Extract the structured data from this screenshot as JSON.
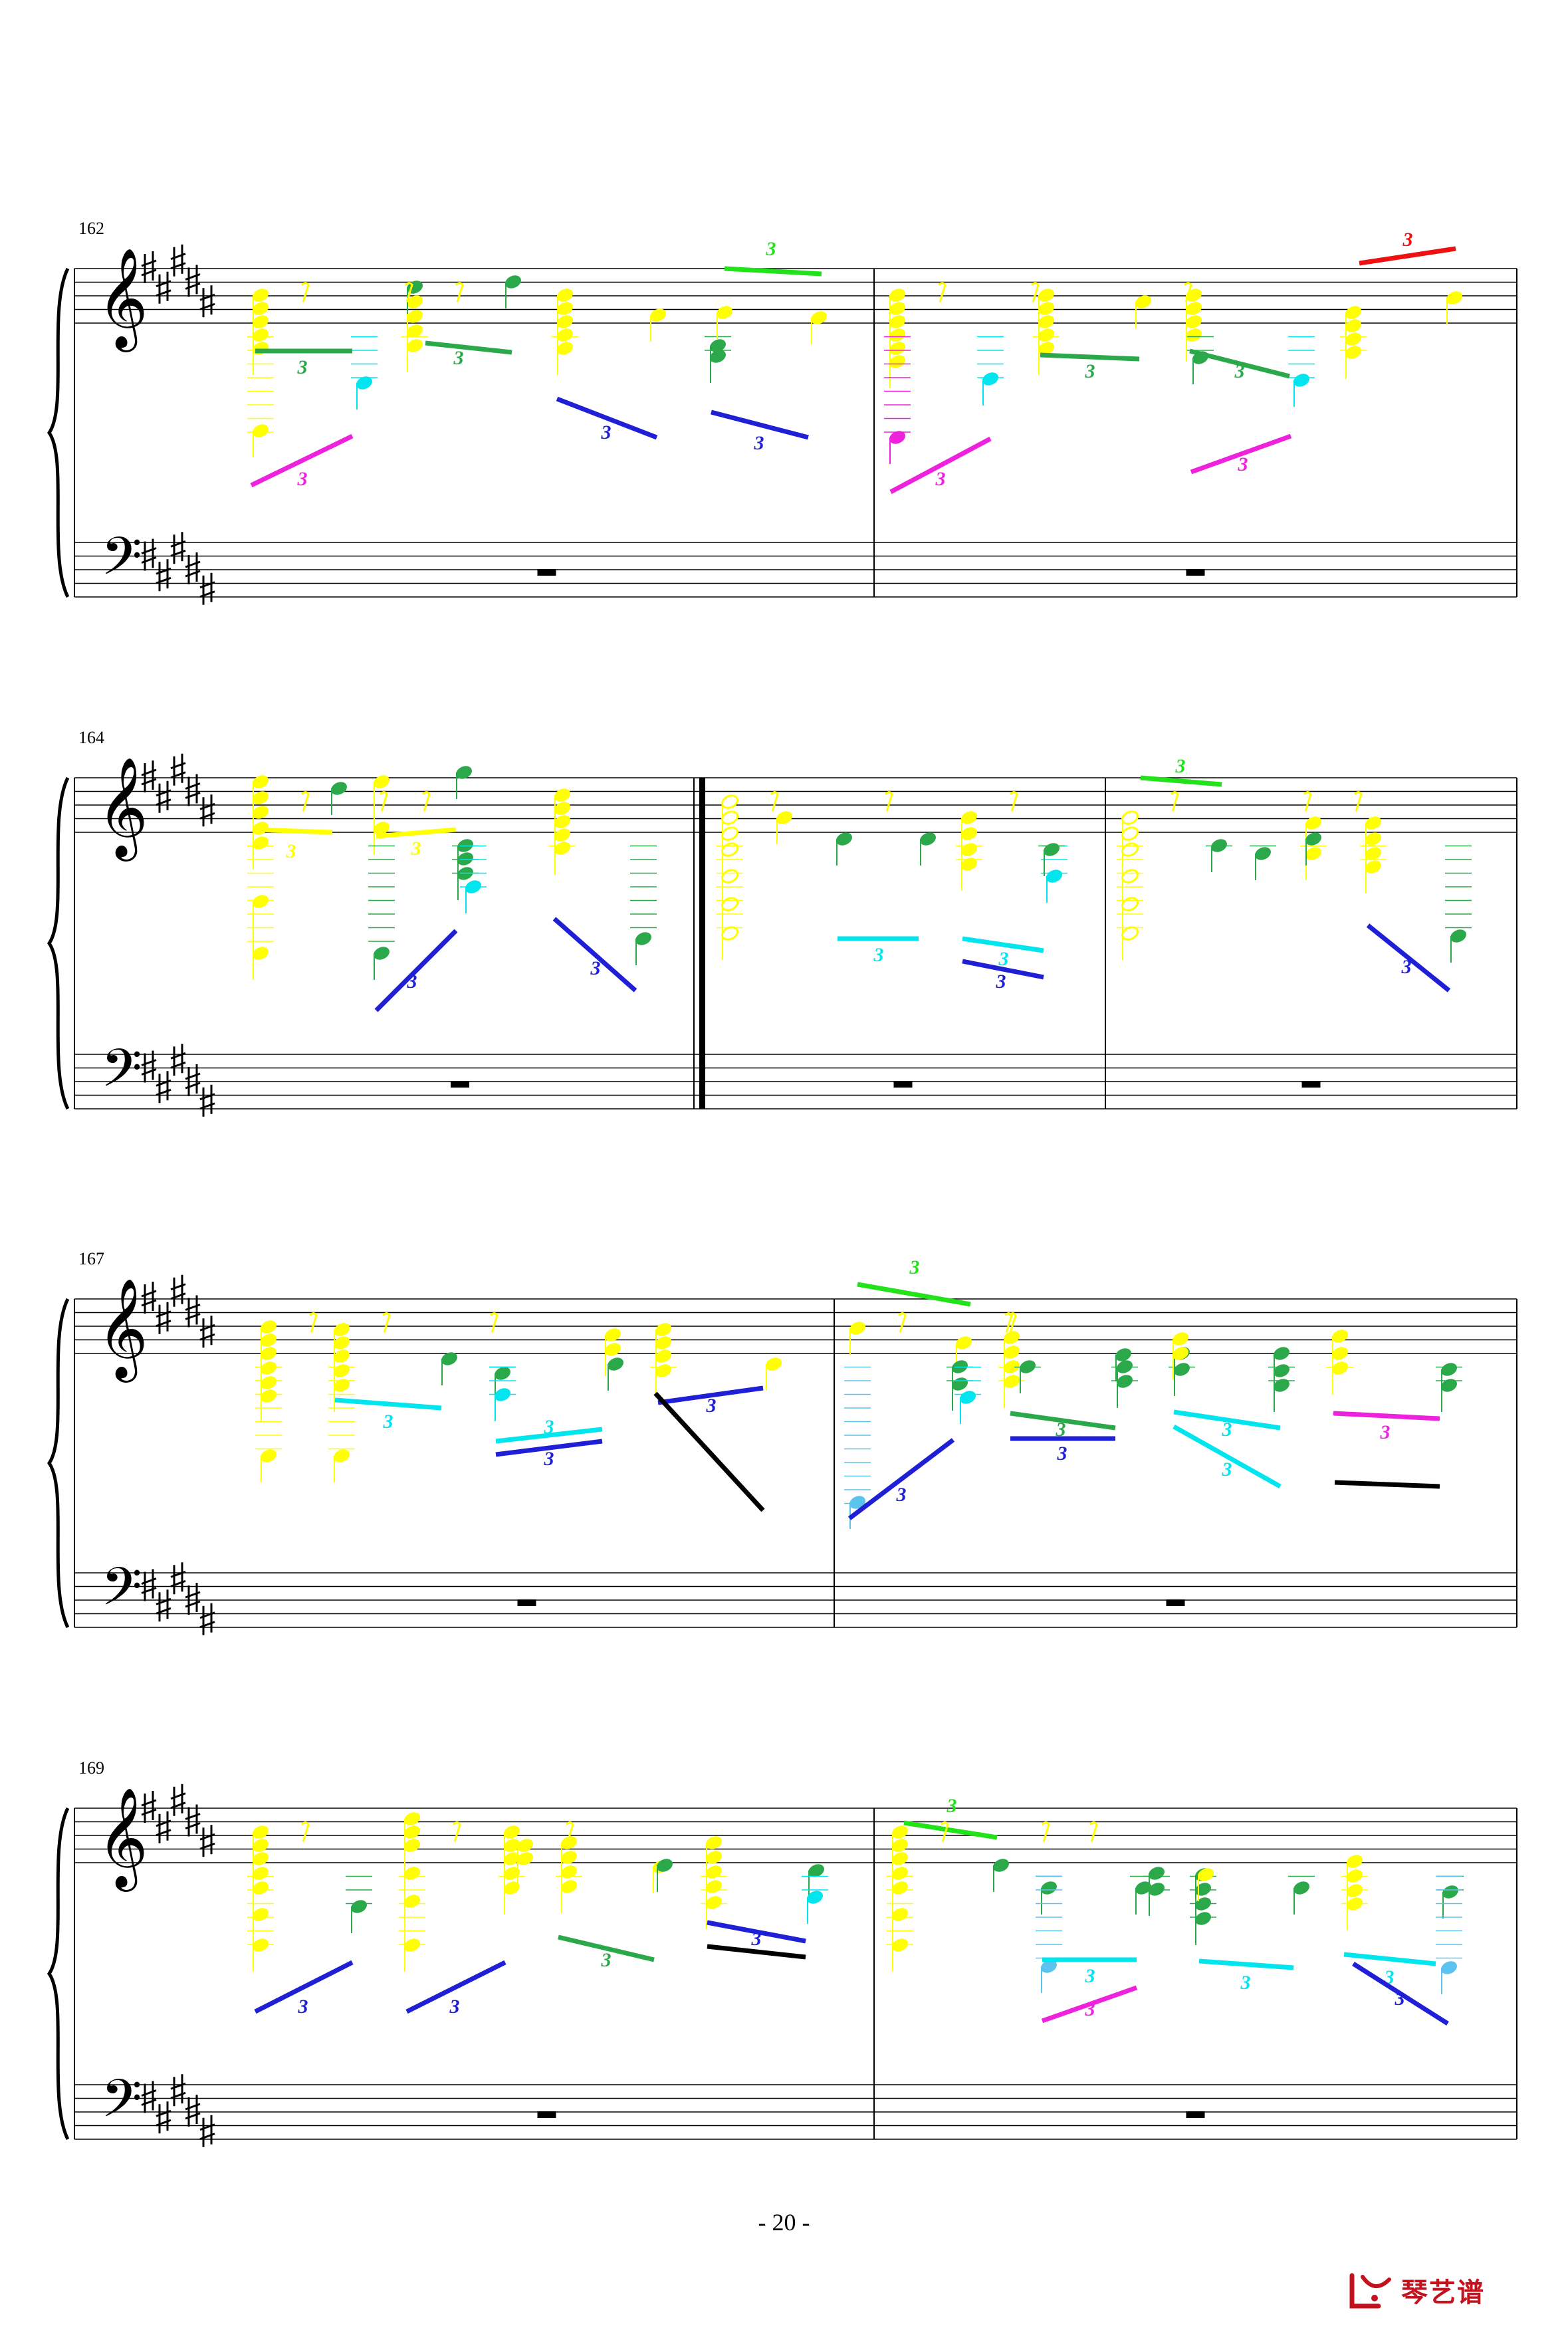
{
  "page": {
    "number_text": "- 20 -"
  },
  "brand": {
    "name": "琴艺谱",
    "color": "#c2121e"
  },
  "colors": {
    "yellow": "#ffff00",
    "green": "#2ba84a",
    "lime": "#22e21a",
    "cyan": "#00e5ee",
    "skyblue": "#5cc2ee",
    "blue": "#1f1fd6",
    "magenta": "#ee22dd",
    "red": "#ee1111",
    "black": "#000000"
  },
  "key_signature": {
    "sharps": 5
  },
  "systems": [
    {
      "first_measure": "162",
      "measures": [
        {
          "tuplets": [
            {
              "text": "3",
              "color": "magenta"
            },
            {
              "text": "3",
              "color": "green"
            },
            {
              "text": "3",
              "color": "green"
            },
            {
              "text": "3",
              "color": "blue"
            },
            {
              "text": "3",
              "color": "lime"
            },
            {
              "text": "3",
              "color": "blue"
            }
          ]
        },
        {
          "tuplets": [
            {
              "text": "3",
              "color": "magenta"
            },
            {
              "text": "3",
              "color": "green"
            },
            {
              "text": "3",
              "color": "green"
            },
            {
              "text": "3",
              "color": "magenta"
            },
            {
              "text": "3",
              "color": "red"
            }
          ]
        }
      ]
    },
    {
      "first_measure": "164",
      "measures": [
        {
          "tuplets": [
            {
              "text": "3",
              "color": "yellow"
            },
            {
              "text": "3",
              "color": "yellow"
            },
            {
              "text": "3",
              "color": "blue"
            },
            {
              "text": "3",
              "color": "blue"
            }
          ]
        },
        {
          "tuplets": [
            {
              "text": "3",
              "color": "cyan"
            },
            {
              "text": "3",
              "color": "cyan"
            },
            {
              "text": "3",
              "color": "blue"
            }
          ]
        },
        {
          "tuplets": [
            {
              "text": "3",
              "color": "lime"
            },
            {
              "text": "3",
              "color": "blue"
            }
          ]
        }
      ]
    },
    {
      "first_measure": "167",
      "measures": [
        {
          "tuplets": [
            {
              "text": "3",
              "color": "cyan"
            },
            {
              "text": "3",
              "color": "cyan"
            },
            {
              "text": "3",
              "color": "blue"
            },
            {
              "text": "3",
              "color": "blue"
            }
          ]
        },
        {
          "tuplets": [
            {
              "text": "3",
              "color": "lime"
            },
            {
              "text": "3",
              "color": "blue"
            },
            {
              "text": "3",
              "color": "green"
            },
            {
              "text": "3",
              "color": "blue"
            },
            {
              "text": "3",
              "color": "cyan"
            },
            {
              "text": "3",
              "color": "cyan"
            },
            {
              "text": "3",
              "color": "magenta"
            }
          ]
        }
      ]
    },
    {
      "first_measure": "169",
      "measures": [
        {
          "tuplets": [
            {
              "text": "3",
              "color": "blue"
            },
            {
              "text": "3",
              "color": "blue"
            },
            {
              "text": "3",
              "color": "green"
            },
            {
              "text": "3",
              "color": "blue"
            }
          ]
        },
        {
          "tuplets": [
            {
              "text": "3",
              "color": "lime"
            },
            {
              "text": "3",
              "color": "magenta"
            },
            {
              "text": "3",
              "color": "cyan"
            },
            {
              "text": "3",
              "color": "cyan"
            },
            {
              "text": "3",
              "color": "cyan"
            },
            {
              "text": "3",
              "color": "blue"
            }
          ]
        }
      ]
    }
  ]
}
